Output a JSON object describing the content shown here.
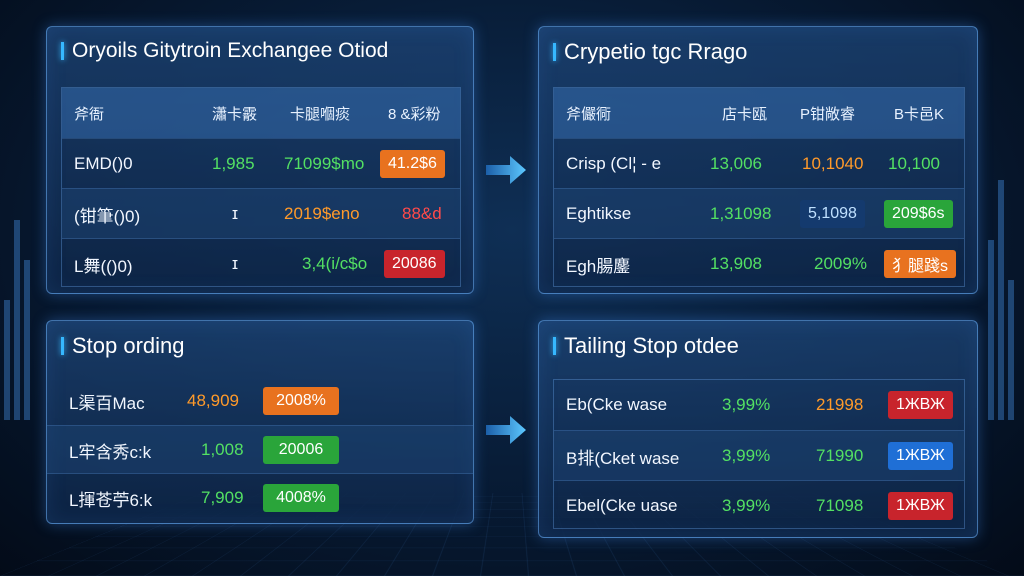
{
  "panels": {
    "top_left": {
      "title": "Oryoils Gitytroin Exchangee Otiod",
      "header": [
        "斧衙",
        "瀟卡霰",
        "卡腿嗰痰",
        "8 &彩粉"
      ],
      "rows": [
        [
          "EMD()0",
          "1,985",
          "71099$mo",
          "41.2$6"
        ],
        [
          "(钳筆()0)",
          "ɪ",
          "2019$eno",
          "88&d"
        ],
        [
          "L舞(()0)",
          "ɪ",
          "3,4(i/c$o",
          "20086"
        ]
      ]
    },
    "top_right": {
      "title": "Crypetio tgc Rrago",
      "header": [
        "斧儼衕",
        "店卡瓯",
        "P钳敞睿",
        "B卡邑K"
      ],
      "rows": [
        [
          "Crisp (Cl¦ - e",
          "13,006",
          "10,1040",
          "10,100"
        ],
        [
          "Eghtikse",
          "1,31098",
          "5,1098",
          "209$6s"
        ],
        [
          "Egh腸鏖",
          "13,908",
          "2009%",
          "犭腿踐s"
        ]
      ]
    },
    "bottom_left": {
      "title": "Stop ording",
      "rows": [
        [
          "L渠百Mac",
          "48,909",
          "2008%"
        ],
        [
          "L牢含秀c:k",
          "1,008",
          "20006"
        ],
        [
          "L揮苍苧6:k",
          "7,909",
          "4008%"
        ]
      ]
    },
    "bottom_right": {
      "title": "Tailing Stop otdee",
      "rows": [
        [
          "Eb(Cke wase",
          "3,99%",
          "21998",
          "1ЖВЖ"
        ],
        [
          "B排(Cket wase",
          "3,99%",
          "71990",
          "1ЖВЖ"
        ],
        [
          "Ebel(Cke uase",
          "3,99%",
          "71098",
          "1ЖВЖ"
        ]
      ]
    }
  },
  "colors": {
    "accent": "#36b8ff",
    "green": "#53e063",
    "orange": "#ff9a2a",
    "red": "#c8242c",
    "blue_badge": "#1f6fd6"
  },
  "icons": [
    "right-arrow-icon"
  ]
}
